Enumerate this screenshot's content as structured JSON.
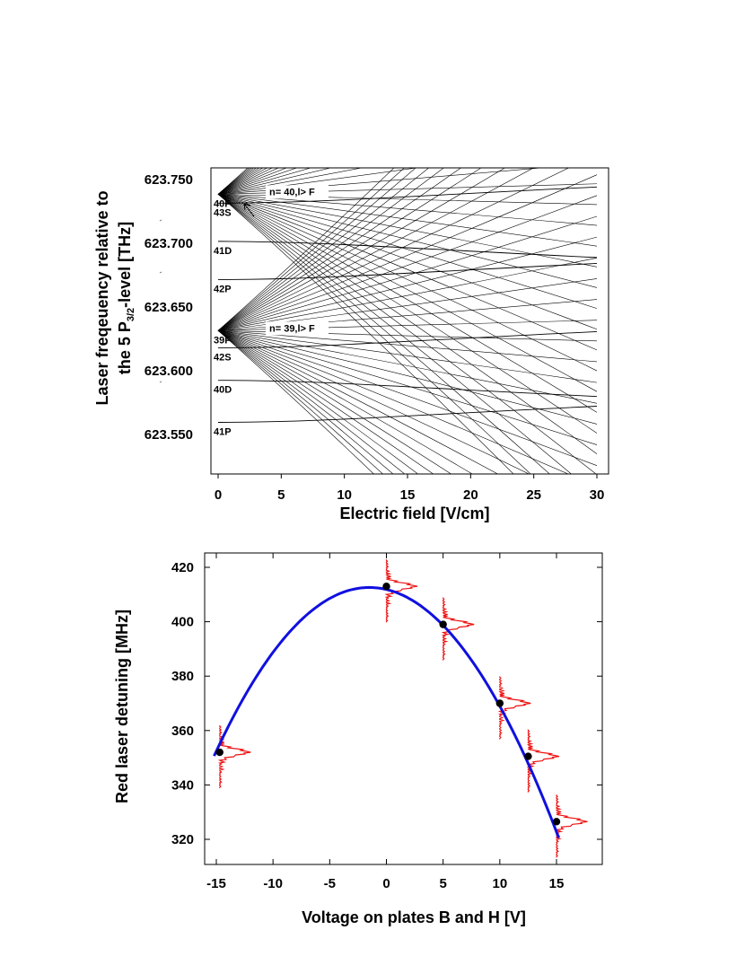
{
  "chart_data": [
    {
      "type": "line",
      "title": "",
      "xlabel": "Electric field [V/cm]",
      "ylabel_line1": "Laser freqeuency relative to",
      "ylabel_line2_prefix": "the  5 P",
      "ylabel_sub": "3/2",
      "ylabel_line2_suffix": "-level [THz]",
      "xlim": [
        0,
        30
      ],
      "ylim": [
        623.517,
        623.752
      ],
      "x_ticks": [
        "0",
        "5",
        "10",
        "15",
        "20",
        "25",
        "30"
      ],
      "x_tick_values": [
        0,
        5,
        10,
        15,
        20,
        25,
        30
      ],
      "y_ticks": [
        "623.750",
        "623.700",
        "623.650",
        "623.600",
        "623.550"
      ],
      "y_tick_values": [
        623.75,
        623.7,
        623.65,
        623.6,
        623.55
      ],
      "levels": [
        {
          "label": "40F",
          "value": 623.7385
        },
        {
          "label": "43S",
          "value": 623.7315
        },
        {
          "label": "41D",
          "value": 623.7015
        },
        {
          "label": "42P",
          "value": 623.6715
        },
        {
          "label": "39F",
          "value": 623.6315
        },
        {
          "label": "42S",
          "value": 623.618
        },
        {
          "label": "40D",
          "value": 623.5925
        },
        {
          "label": "41P",
          "value": 623.5595
        }
      ],
      "manifolds": [
        {
          "label": "n= 40,l> F",
          "center": 623.7385
        },
        {
          "label": "n= 39,l> F",
          "center": 623.6315
        }
      ]
    },
    {
      "type": "scatter",
      "title": "",
      "xlabel": "Voltage on plates B and H [V]",
      "ylabel": "Red laser detuning [MHz]",
      "xlim": [
        -16.5,
        20.5
      ],
      "ylim": [
        310,
        423
      ],
      "x_ticks": [
        "-15",
        "-10",
        "-5",
        "0",
        "5",
        "10",
        "15"
      ],
      "x_tick_values": [
        -15,
        -10,
        -5,
        0,
        5,
        10,
        15
      ],
      "y_ticks": [
        "420",
        "400",
        "380",
        "360",
        "340",
        "320"
      ],
      "y_tick_values": [
        420,
        400,
        380,
        360,
        340,
        320
      ],
      "points": {
        "x": [
          -14.7,
          0,
          5,
          10,
          12.5,
          15
        ],
        "y": [
          352,
          413,
          399,
          370,
          350.5,
          326.5
        ]
      },
      "fit": {
        "name": "parabolic fit",
        "vertex_x": -1.5,
        "vertex_y": 412.6,
        "curvature": 0.33,
        "x_range": [
          -15.2,
          15.2
        ],
        "color": "#1010e0"
      },
      "spectra_color": "#ee1111"
    }
  ]
}
